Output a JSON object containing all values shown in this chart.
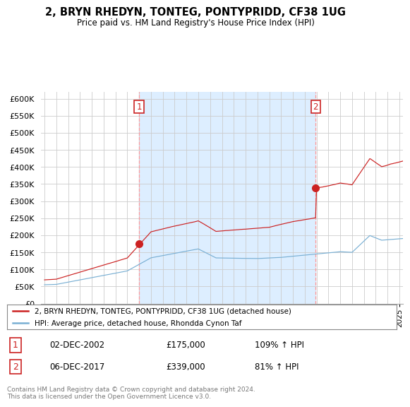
{
  "title": "2, BRYN RHEDYN, TONTEG, PONTYPRIDD, CF38 1UG",
  "subtitle": "Price paid vs. HM Land Registry's House Price Index (HPI)",
  "legend_line1": "2, BRYN RHEDYN, TONTEG, PONTYPRIDD, CF38 1UG (detached house)",
  "legend_line2": "HPI: Average price, detached house, Rhondda Cynon Taf",
  "purchase1_date": "02-DEC-2002",
  "purchase1_price": "£175,000",
  "purchase1_hpi": "109% ↑ HPI",
  "purchase2_date": "06-DEC-2017",
  "purchase2_price": "£339,000",
  "purchase2_hpi": "81% ↑ HPI",
  "footer": "Contains HM Land Registry data © Crown copyright and database right 2024.\nThis data is licensed under the Open Government Licence v3.0.",
  "line_color_red": "#cc2222",
  "line_color_blue": "#7ab0d4",
  "background_color": "#ffffff",
  "shaded_color": "#ddeeff",
  "grid_color": "#cccccc",
  "ylim": [
    0,
    620000
  ],
  "yticks": [
    0,
    50000,
    100000,
    150000,
    200000,
    250000,
    300000,
    350000,
    400000,
    450000,
    500000,
    550000,
    600000
  ],
  "purchase1_x": 2003.0,
  "purchase1_y": 175000,
  "purchase2_x": 2017.92,
  "purchase2_y": 339000,
  "xmin": 1995.0,
  "xmax": 2025.3
}
